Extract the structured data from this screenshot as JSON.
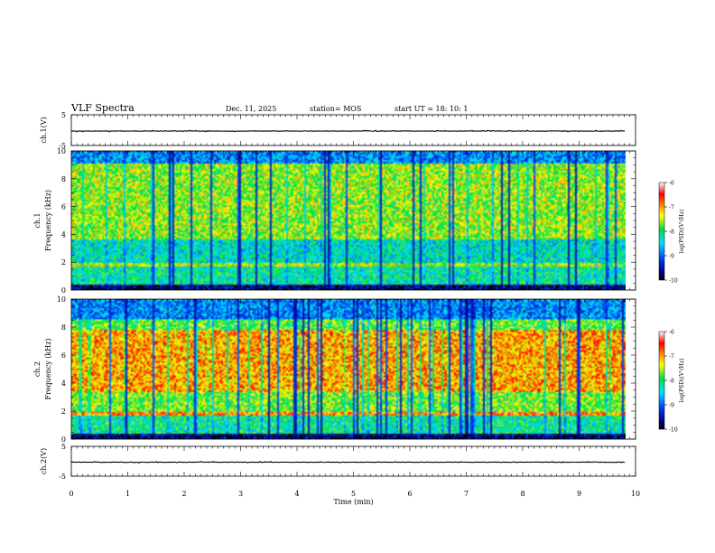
{
  "header": {
    "title": "VLF Spectra",
    "date": "Dec. 11, 2025",
    "station": "station= MOS",
    "start": "start  UT =   18: 10: 1"
  },
  "chart_data": {
    "type": "heatmap",
    "xlabel": "Time (min)",
    "xlim": [
      0,
      10
    ],
    "xticks": [
      "0",
      "1",
      "2",
      "3",
      "4",
      "5",
      "6",
      "7",
      "8",
      "9",
      "10"
    ],
    "data_end_min": 9.82,
    "waveform_panels": [
      {
        "ylabel": "ch.1(V)",
        "ylim": [
          -5,
          5
        ],
        "yticks": [
          "5",
          "-5"
        ],
        "level": -0.3
      },
      {
        "ylabel": "ch.2(V)",
        "ylim": [
          -5,
          5
        ],
        "yticks": [
          "5",
          "-5"
        ],
        "level": -0.3
      }
    ],
    "spectrogram_panels": [
      {
        "ylabel_top": "ch.1",
        "ylabel": "Frequency (kHz)",
        "ylim": [
          0,
          10
        ],
        "yticks": [
          "0",
          "2",
          "4",
          "6",
          "8",
          "10"
        ],
        "colorbar": {
          "label": "log(PSD)(V²/Hz)",
          "range": [
            -10,
            -6
          ],
          "ticks": [
            "-6",
            "-7",
            "-8",
            "-9",
            "-10"
          ]
        }
      },
      {
        "ylabel_top": "ch.2",
        "ylabel": "Frequency (kHz)",
        "ylim": [
          0,
          10
        ],
        "yticks": [
          "0",
          "2",
          "4",
          "6",
          "8",
          "10"
        ],
        "colorbar": {
          "label": "log(PSD)(V²/Hz)",
          "range": [
            -10,
            -6
          ],
          "ticks": [
            "-6",
            "-7",
            "-8",
            "-9",
            "-10"
          ]
        }
      }
    ]
  }
}
